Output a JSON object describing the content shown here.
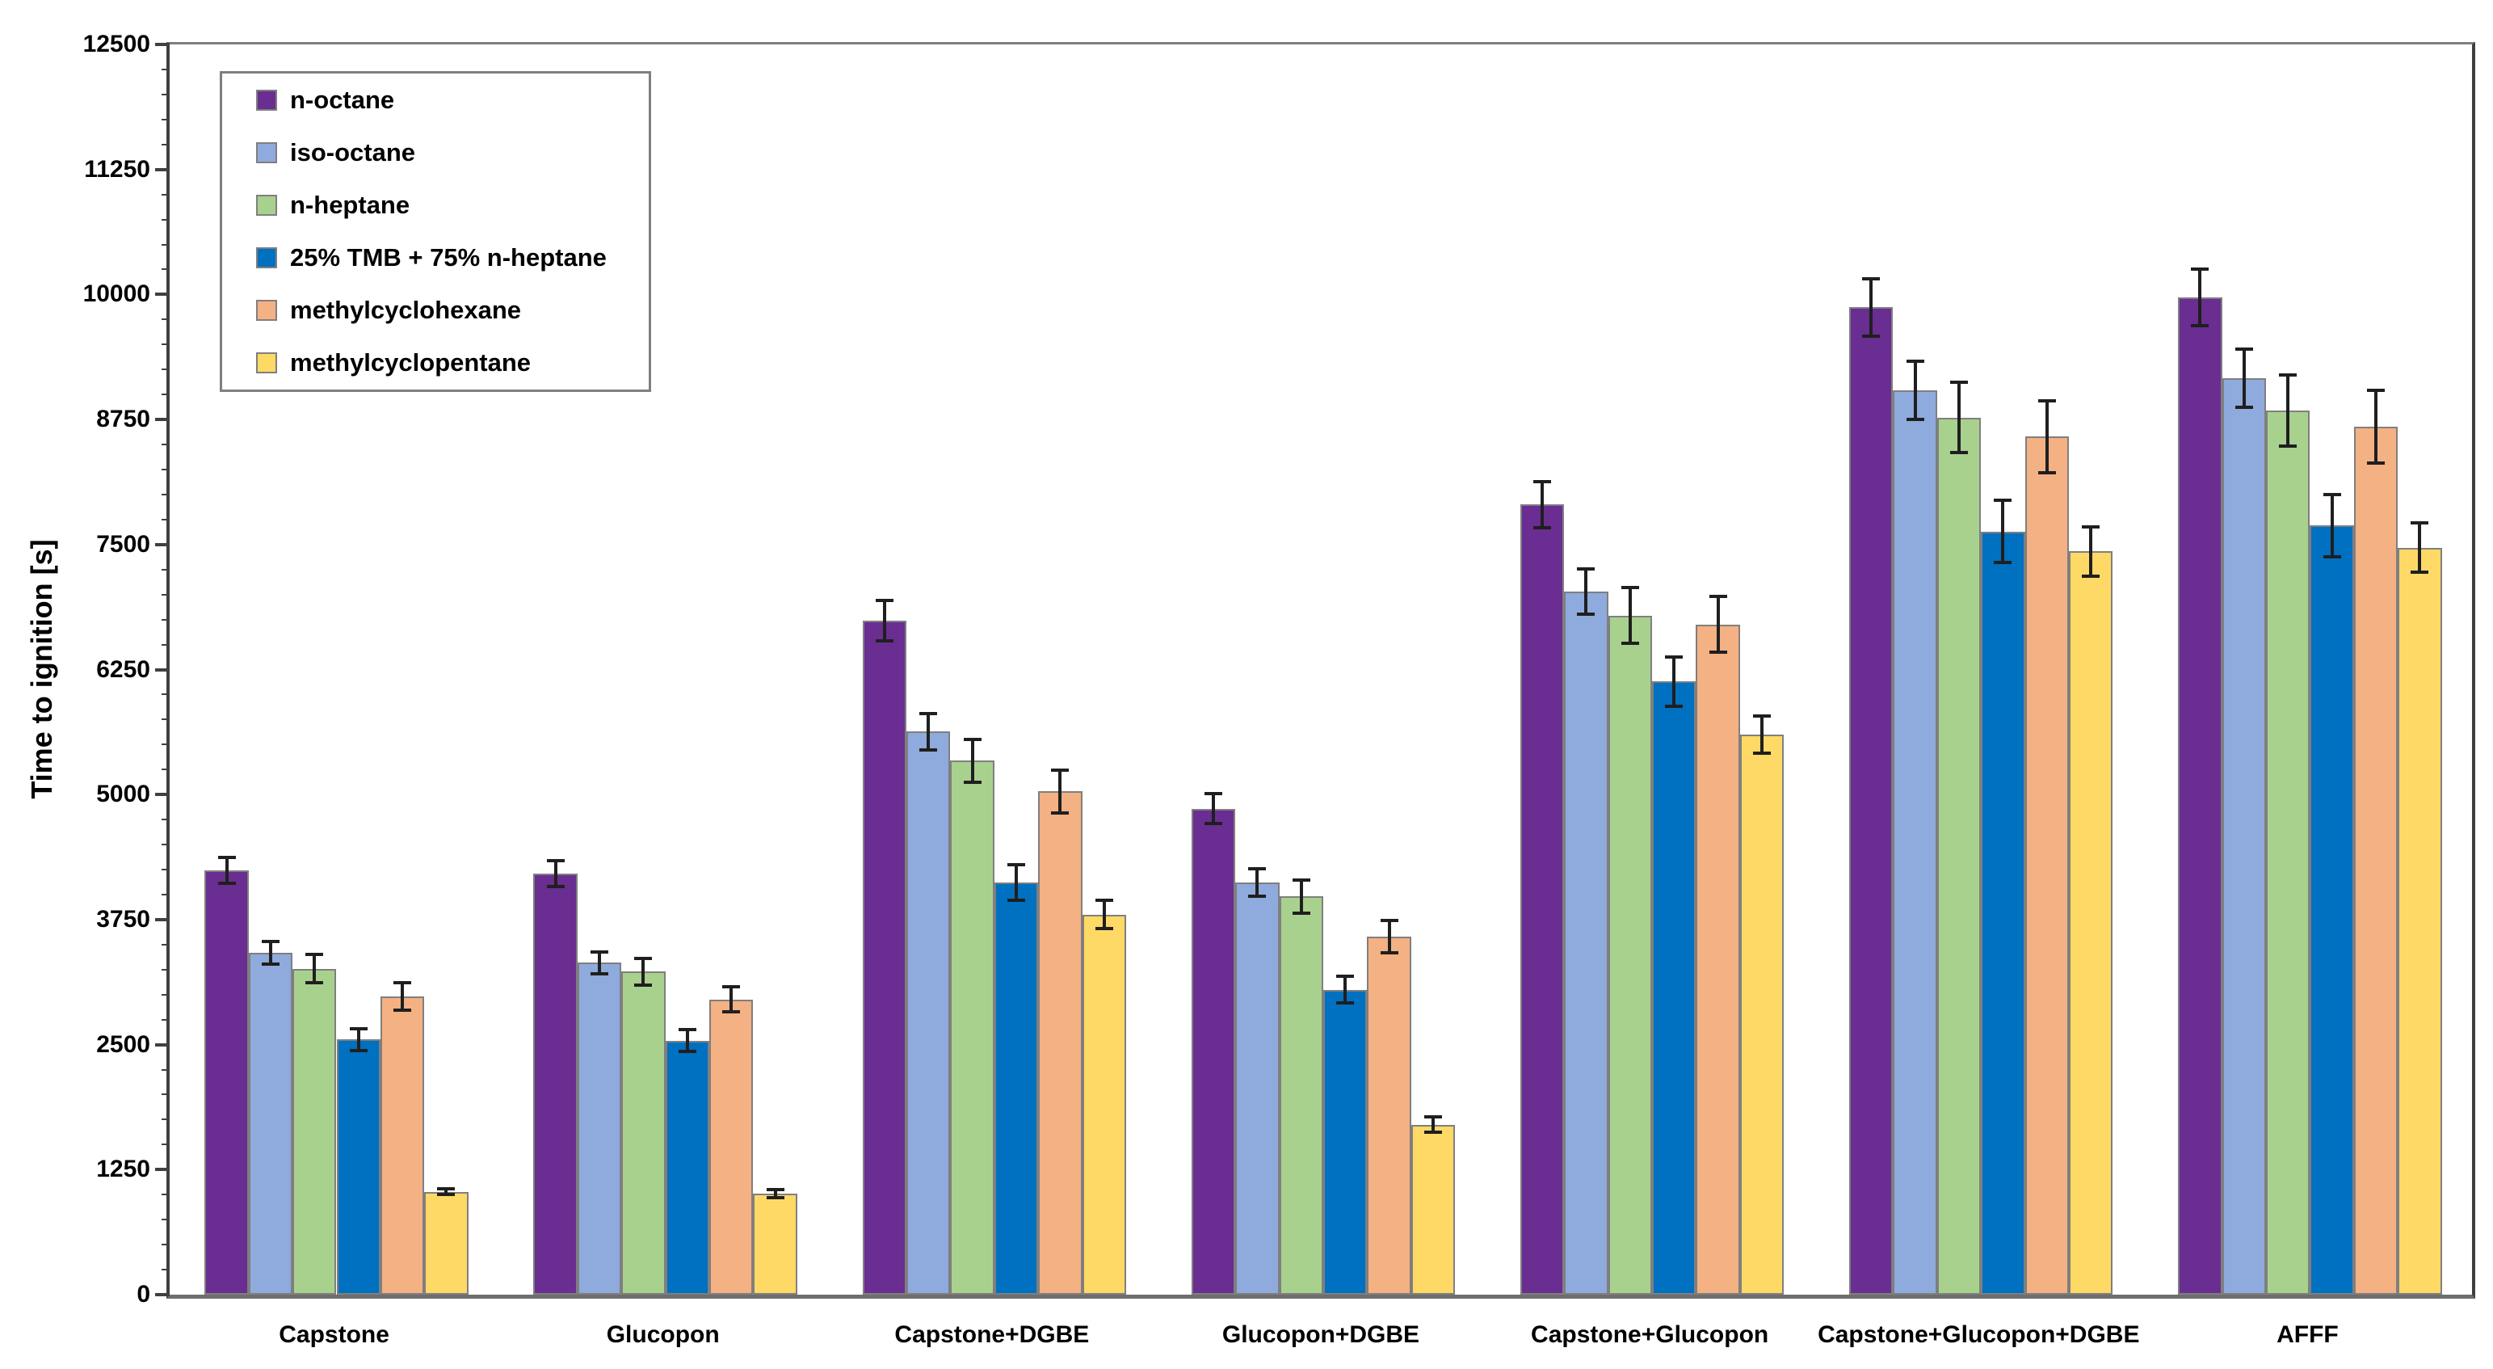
{
  "y_axis": {
    "title": "Time to ignition [s]",
    "ticks": [
      0,
      1250,
      2500,
      3750,
      5000,
      6250,
      7500,
      8750,
      10000,
      11250,
      12500
    ]
  },
  "chart_data": {
    "type": "bar",
    "title": "",
    "xlabel": "",
    "ylabel": "Time to ignition [s]",
    "ylim": [
      0,
      12500
    ],
    "y_major_step": 1250,
    "y_minor_step": 250,
    "grid": false,
    "error_bars": true,
    "legend_position": "upper-left-inside",
    "categories": [
      "Capstone",
      "Glucopon",
      "Capstone+DGBE",
      "Glucopon+DGBE",
      "Capstone+Glucopon",
      "Capstone+Glucopon+DGBE",
      "AFFF"
    ],
    "series": [
      {
        "name": "n-octane",
        "color": "#6A2D91",
        "values": [
          4240,
          4210,
          6740,
          4860,
          7900,
          9870,
          9970
        ],
        "errors": [
          130,
          130,
          200,
          150,
          230,
          290,
          280
        ]
      },
      {
        "name": "iso-octane",
        "color": "#8FAADC",
        "values": [
          3420,
          3320,
          5630,
          4120,
          7030,
          9040,
          9160
        ],
        "errors": [
          115,
          110,
          180,
          140,
          230,
          290,
          290
        ]
      },
      {
        "name": "n-heptane",
        "color": "#A9D18E",
        "values": [
          3260,
          3230,
          5340,
          3980,
          6790,
          8770,
          8840
        ],
        "errors": [
          140,
          135,
          215,
          165,
          280,
          350,
          355
        ]
      },
      {
        "name": "25% TMB + 75% n-heptane",
        "color": "#0070C0",
        "values": [
          2550,
          2540,
          4120,
          3050,
          6130,
          7630,
          7690
        ],
        "errors": [
          110,
          110,
          180,
          130,
          245,
          310,
          310
        ]
      },
      {
        "name": "methylcyclohexane",
        "color": "#F4B183",
        "values": [
          2980,
          2950,
          5030,
          3580,
          6700,
          8580,
          8680
        ],
        "errors": [
          135,
          125,
          215,
          160,
          280,
          360,
          365
        ]
      },
      {
        "name": "methylcyclopentane",
        "color": "#FFD966",
        "values": [
          1030,
          1010,
          3800,
          1700,
          5600,
          7430,
          7470
        ],
        "errors": [
          30,
          40,
          140,
          75,
          185,
          250,
          250
        ]
      }
    ]
  }
}
